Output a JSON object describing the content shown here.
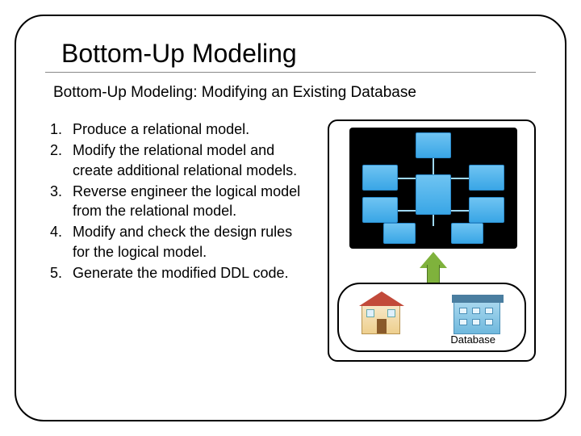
{
  "title": "Bottom-Up Modeling",
  "subtitle": "Bottom-Up Modeling: Modifying an Existing Database",
  "steps": [
    "Produce a relational model.",
    "Modify the relational model and create additional relational models.",
    "Reverse engineer the logical model from the relational model.",
    "Modify and check the design rules for the logical model.",
    "Generate the modified DDL code."
  ],
  "diagram": {
    "type": "flowchart",
    "background_color": "#ffffff",
    "border_color": "#000000",
    "cluster": {
      "bg": "#000000",
      "node_fill_top": "#6fc4f2",
      "node_fill_bottom": "#39a6e6",
      "node_border": "#2b8bcc",
      "wire_color": "#9fd8f6",
      "node_count": 8
    },
    "arrow": {
      "direction": "up",
      "fill": "#7fb23c",
      "border": "#4d7322"
    },
    "database_region": {
      "label": "Database",
      "border_color": "#000000",
      "buildings": [
        {
          "kind": "house",
          "roof": "#c24a3a",
          "wall": "#eecf8e"
        },
        {
          "kind": "office",
          "roof": "#4a7ea0",
          "wall": "#6fb8dd"
        }
      ]
    }
  },
  "fonts": {
    "title_size_pt": 24,
    "subtitle_size_pt": 14,
    "body_size_pt": 13,
    "label_size_pt": 10
  },
  "colors": {
    "text": "#000000",
    "frame_border": "#000000",
    "title_rule": "#888888"
  }
}
